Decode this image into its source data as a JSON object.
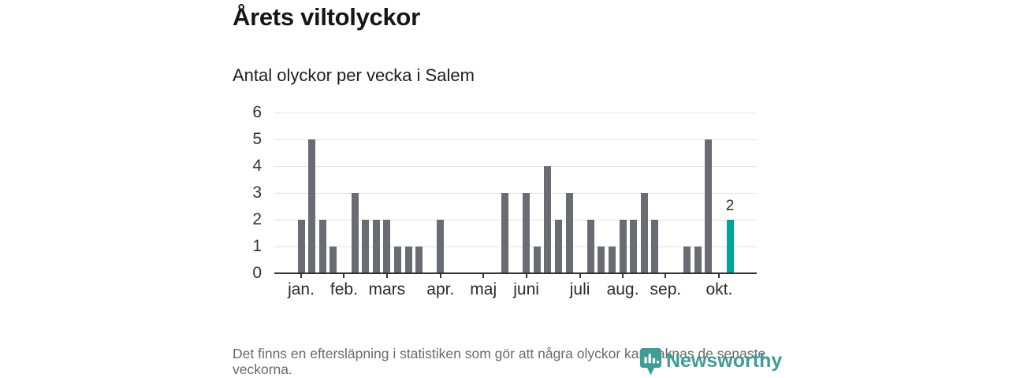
{
  "chart_data": {
    "type": "bar",
    "title": "Årets viltolyckor",
    "subtitle": "Antal olyckor per vecka i Salem",
    "x_unit": "vecka",
    "ylim": [
      0,
      6
    ],
    "yticks": [
      0,
      1,
      2,
      3,
      4,
      5,
      6
    ],
    "grid": "horizontal",
    "legend": "none",
    "values": [
      2,
      5,
      2,
      1,
      0,
      3,
      2,
      2,
      2,
      1,
      1,
      1,
      0,
      2,
      0,
      0,
      0,
      0,
      0,
      3,
      0,
      3,
      1,
      4,
      2,
      3,
      0,
      2,
      1,
      1,
      2,
      2,
      3,
      2,
      0,
      0,
      1,
      1,
      5,
      0,
      2
    ],
    "month_ticks": [
      {
        "label": "jan.",
        "index": 0
      },
      {
        "label": "feb.",
        "index": 4
      },
      {
        "label": "mars",
        "index": 8
      },
      {
        "label": "apr.",
        "index": 13
      },
      {
        "label": "maj",
        "index": 17
      },
      {
        "label": "juni",
        "index": 21
      },
      {
        "label": "juli",
        "index": 26
      },
      {
        "label": "aug.",
        "index": 30
      },
      {
        "label": "sep.",
        "index": 34
      },
      {
        "label": "okt.",
        "index": 39
      }
    ],
    "highlight_last_bar": true,
    "last_bar_label": "2",
    "colors": {
      "bar": "#6b6b73",
      "highlight": "#00a69b",
      "grid": "#e2e2e2",
      "axis": "#333333"
    }
  },
  "footnote": "Det finns en eftersläpning i statistiken som gör att några olyckor kan saknas de senaste veckorna.",
  "branding": {
    "logo_text": "Newsworthy",
    "logo_color": "#3f9d98"
  }
}
